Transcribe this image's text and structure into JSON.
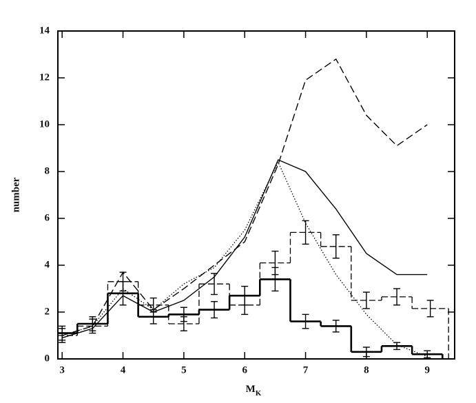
{
  "chart_data": {
    "type": "line",
    "y_label": "number",
    "x_label": {
      "text": "M",
      "subscript": "K"
    },
    "xlim": [
      2.93,
      9.45
    ],
    "ylim": [
      0,
      14
    ],
    "xticks": [
      3,
      4,
      5,
      6,
      7,
      8,
      9
    ],
    "yticks": [
      0,
      2,
      4,
      6,
      8,
      10,
      12,
      14
    ],
    "series": [
      {
        "kind": "step",
        "color": "#000",
        "width": 2.6,
        "dash": "",
        "bins": [
          2.75,
          3.25,
          3.75,
          4.25,
          4.75,
          5.25,
          5.75,
          6.25,
          6.75,
          7.25,
          7.75,
          8.25,
          8.75,
          9.25
        ],
        "values": [
          1.1,
          1.5,
          2.8,
          1.8,
          1.9,
          2.1,
          2.7,
          3.4,
          1.6,
          1.4,
          0.3,
          0.55,
          0.2
        ],
        "errors": [
          0.3,
          0.3,
          0.5,
          0.3,
          0.3,
          0.35,
          0.4,
          0.5,
          0.3,
          0.25,
          0.2,
          0.15,
          0.15
        ]
      },
      {
        "kind": "step",
        "color": "#000",
        "width": 1.3,
        "dash": "9,4",
        "bins": [
          2.75,
          3.25,
          3.75,
          4.25,
          4.75,
          5.25,
          5.75,
          6.25,
          6.75,
          7.25,
          7.75,
          8.25,
          8.75,
          9.35
        ],
        "values": [
          1.0,
          1.4,
          3.3,
          2.3,
          1.5,
          3.2,
          2.3,
          4.1,
          5.4,
          4.8,
          2.5,
          2.65,
          2.15
        ],
        "errors": [
          0.3,
          0.3,
          0.4,
          0.3,
          0.3,
          0.45,
          0.4,
          0.5,
          0.5,
          0.5,
          0.35,
          0.35,
          0.35
        ]
      },
      {
        "kind": "line",
        "color": "#000",
        "width": 1.4,
        "dash": "",
        "x": [
          3,
          3.5,
          4,
          4.5,
          5,
          5.5,
          6,
          6.55,
          7,
          7.5,
          8,
          8.5,
          9
        ],
        "values": [
          0.9,
          1.3,
          2.7,
          2.0,
          2.5,
          3.5,
          5.2,
          8.5,
          8.0,
          6.4,
          4.5,
          3.6,
          3.6
        ]
      },
      {
        "kind": "line",
        "color": "#000",
        "width": 1.4,
        "dash": "11,5",
        "x": [
          3,
          3.5,
          4,
          4.5,
          5,
          5.5,
          6,
          6.55,
          7,
          7.5,
          8,
          8.5,
          9
        ],
        "values": [
          1.0,
          1.4,
          3.7,
          2.1,
          3.0,
          4.0,
          5.0,
          8.3,
          11.9,
          12.8,
          10.4,
          9.1,
          10.0
        ]
      },
      {
        "kind": "line",
        "color": "#000",
        "width": 1.3,
        "dash": "1.5,2.5",
        "x": [
          3,
          3.5,
          4,
          4.5,
          5,
          5.5,
          6,
          6.55,
          7,
          7.5,
          8,
          8.5,
          9
        ],
        "values": [
          1.0,
          1.4,
          3.0,
          2.1,
          3.2,
          3.9,
          5.5,
          8.4,
          5.8,
          3.6,
          1.9,
          0.6,
          0.1
        ]
      }
    ]
  }
}
